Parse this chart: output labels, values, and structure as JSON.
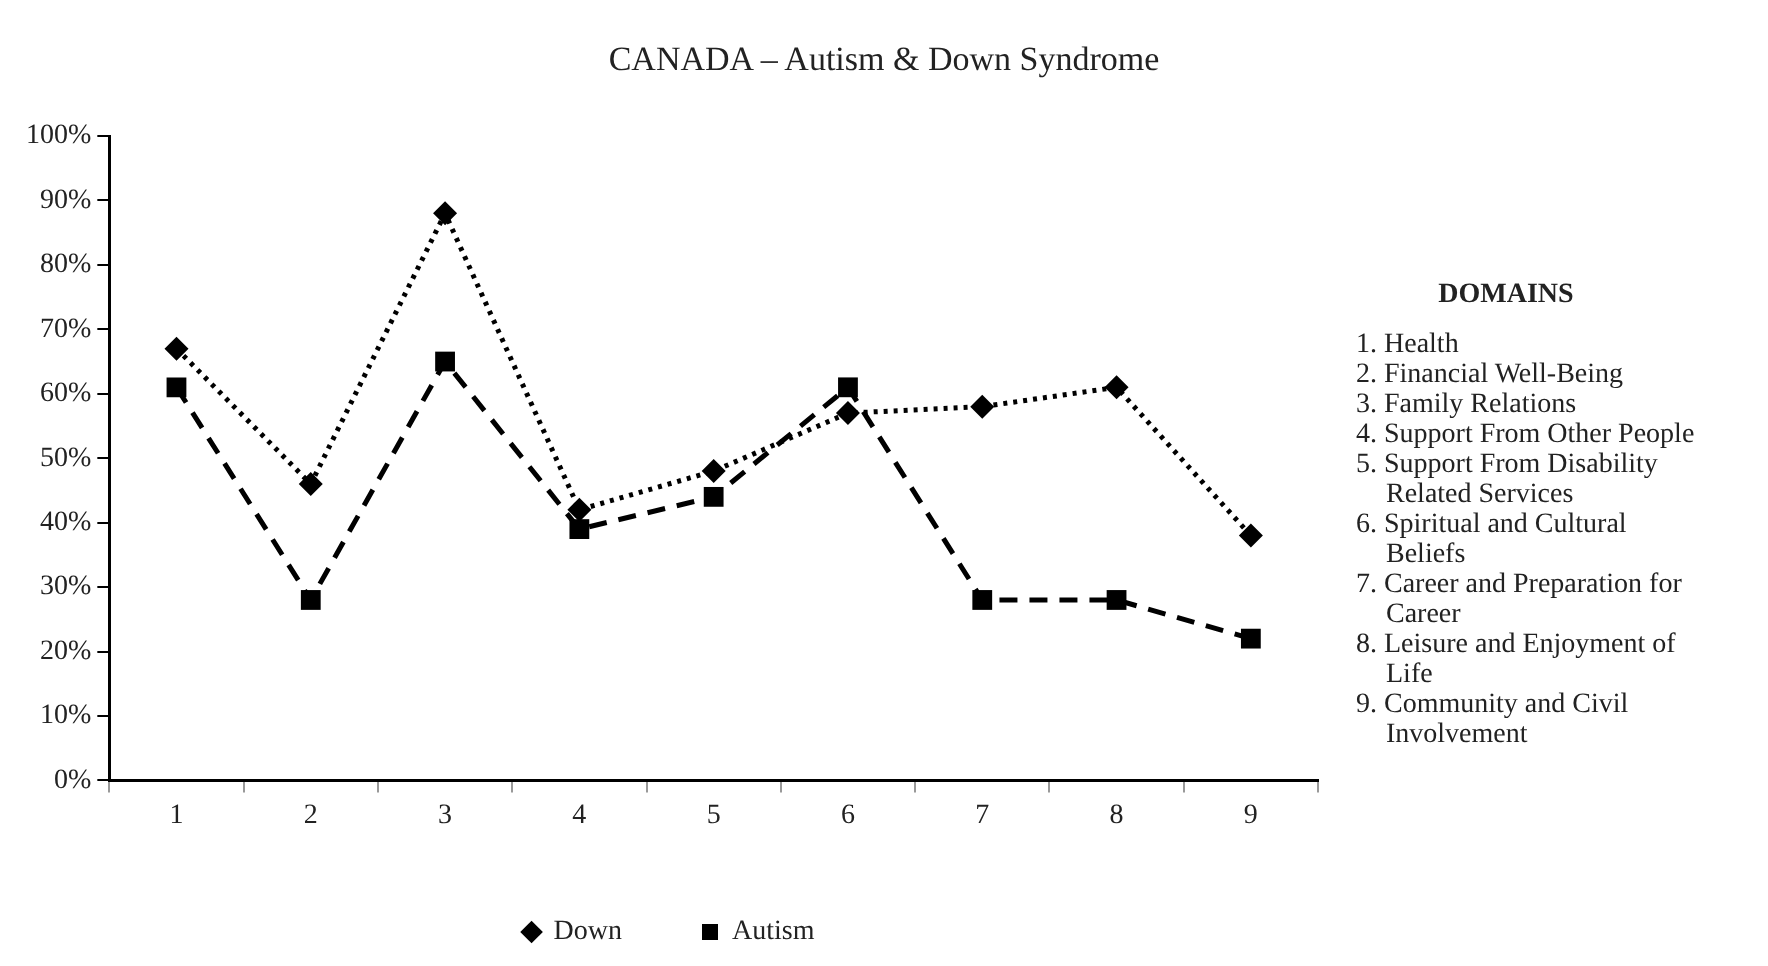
{
  "chart_data": {
    "type": "line",
    "title": "CANADA – Autism & Down Syndrome",
    "categories": [
      "1",
      "2",
      "3",
      "4",
      "5",
      "6",
      "7",
      "8",
      "9"
    ],
    "series": [
      {
        "name": "Down",
        "color": "#000000",
        "marker": "diamond",
        "line_style": "dotted",
        "values": [
          67,
          46,
          88,
          42,
          48,
          57,
          58,
          61,
          38
        ]
      },
      {
        "name": "Autism",
        "color": "#000000",
        "marker": "square",
        "line_style": "dashed",
        "values": [
          61,
          28,
          65,
          39,
          44,
          61,
          28,
          28,
          22
        ]
      }
    ],
    "ylim": [
      0,
      100
    ],
    "yticks": [
      {
        "value": 0,
        "label": "0%"
      },
      {
        "value": 10,
        "label": "10%"
      },
      {
        "value": 20,
        "label": "20%"
      },
      {
        "value": 30,
        "label": "30%"
      },
      {
        "value": 40,
        "label": "40%"
      },
      {
        "value": 50,
        "label": "50%"
      },
      {
        "value": 60,
        "label": "60%"
      },
      {
        "value": 70,
        "label": "70%"
      },
      {
        "value": 80,
        "label": "80%"
      },
      {
        "value": 90,
        "label": "90%"
      },
      {
        "value": 100,
        "label": "100%"
      }
    ],
    "grid": false,
    "legend": "bottom",
    "annotations": [
      "DOMAINS",
      "1. Health",
      "2. Financial Well-Being",
      "3. Family Relations",
      "4. Support From Other People",
      "5. Support From Disability Related Services",
      "6. Spiritual and Cultural Beliefs",
      "7. Career and Preparation for Career",
      "8. Leisure and Enjoyment of Life",
      "9. Community and Civil Involvement"
    ]
  }
}
